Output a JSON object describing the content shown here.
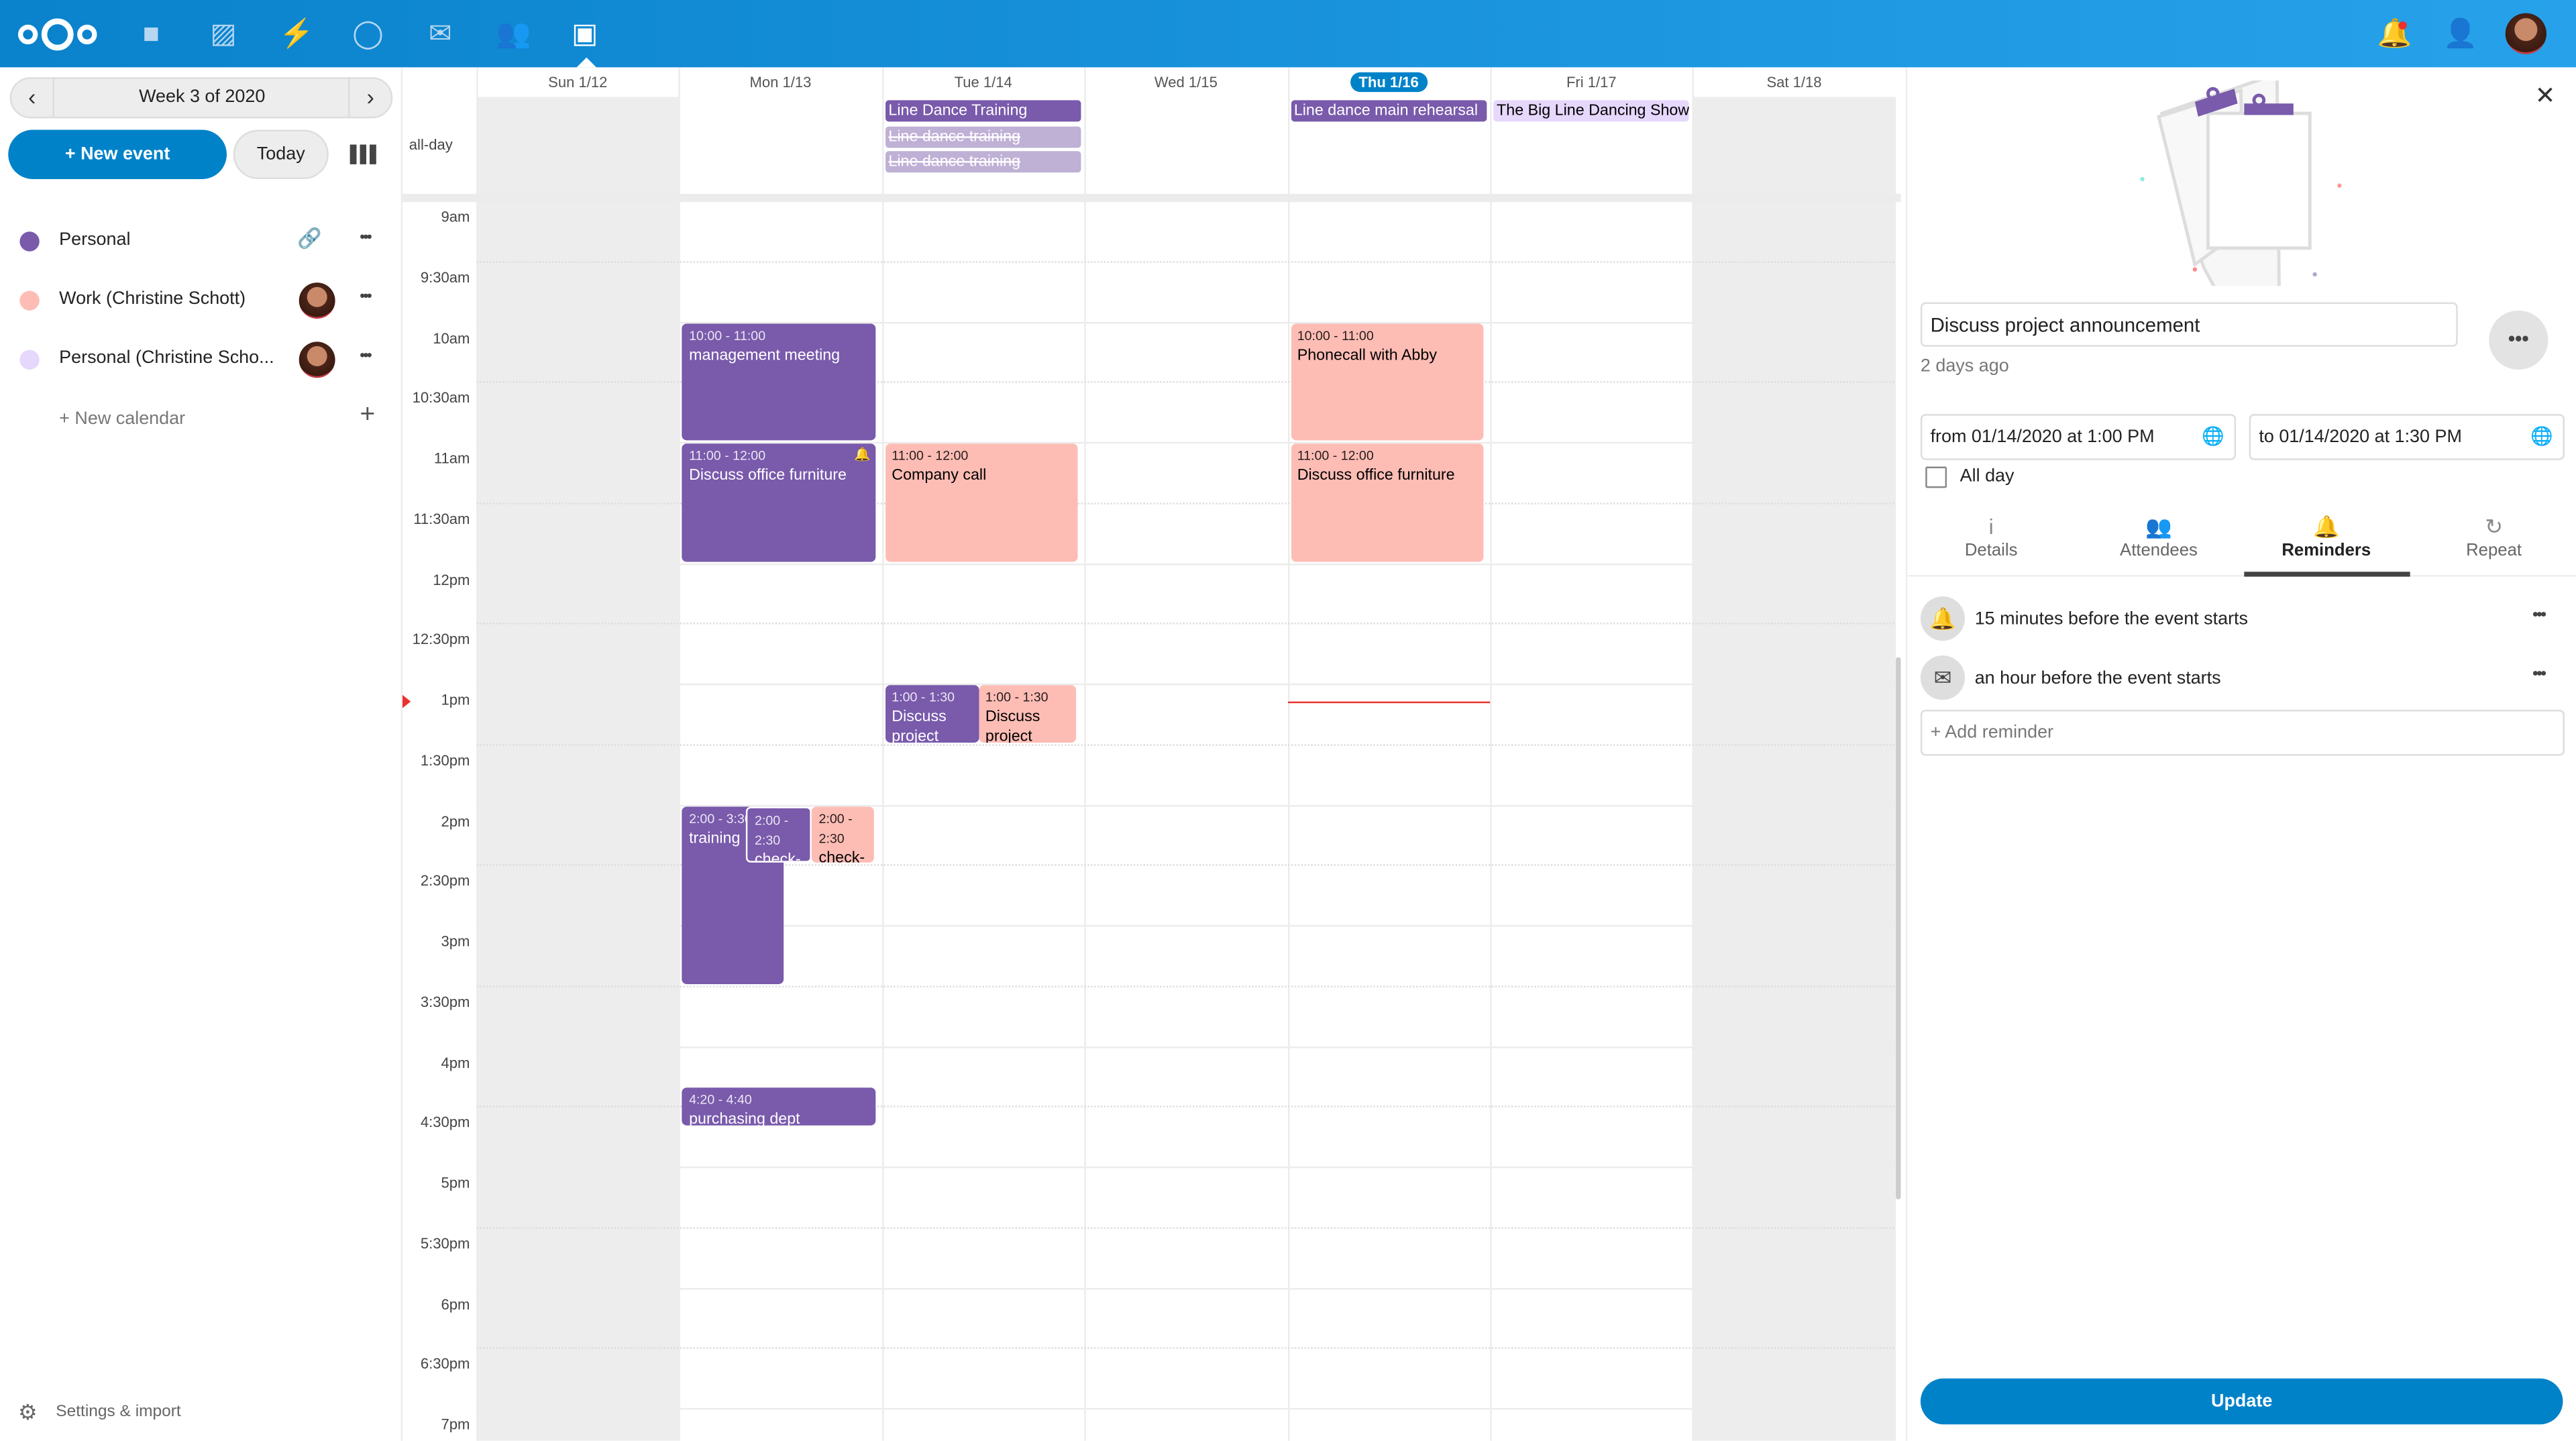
{
  "topbar": {
    "apps": [
      "logo-icon",
      "files-icon",
      "photos-icon",
      "activity-icon",
      "talk-icon",
      "mail-icon",
      "contacts-icon",
      "calendar-icon"
    ],
    "right": [
      "notifications-icon",
      "contacts-menu-icon",
      "user-avatar"
    ],
    "color": "#0082c9"
  },
  "sidebar": {
    "week_label": "Week 3 of 2020",
    "new_event": "+ New event",
    "today": "Today",
    "calendars": [
      {
        "name": "Personal",
        "color": "#795aab",
        "shared": false
      },
      {
        "name": "Work (Christine Schott)",
        "color": "#fdbdb5",
        "shared": true
      },
      {
        "name": "Personal (Christine Scho...",
        "color": "#e6d7fc",
        "shared": true
      }
    ],
    "new_calendar": "+ New calendar",
    "settings": "Settings & import"
  },
  "calendar": {
    "all_day_label": "all-day",
    "days": [
      "Sun 1/12",
      "Mon 1/13",
      "Tue 1/14",
      "Wed 1/15",
      "Thu 1/16",
      "Fri 1/17",
      "Sat 1/18"
    ],
    "today_index": 4,
    "hours": [
      "9am",
      "9:30am",
      "10am",
      "10:30am",
      "11am",
      "11:30am",
      "12pm",
      "12:30pm",
      "1pm",
      "1:30pm",
      "2pm",
      "2:30pm",
      "3pm",
      "3:30pm",
      "4pm",
      "4:30pm",
      "5pm",
      "5:30pm",
      "6pm",
      "6:30pm",
      "7pm"
    ],
    "now": "1:09pm",
    "all_day_events": [
      {
        "day": 2,
        "title": "Line Dance Training",
        "style": "purple"
      },
      {
        "day": 2,
        "title": "Line dance training",
        "style": "cancelled"
      },
      {
        "day": 2,
        "title": "Line dance training",
        "style": "cancelled"
      },
      {
        "day": 4,
        "title": "Line dance main rehearsal",
        "style": "purple"
      },
      {
        "day": 5,
        "title": "The Big Line Dancing Show",
        "style": "lilac"
      }
    ],
    "events": [
      {
        "day": 1,
        "start": 10,
        "end": 11,
        "time": "10:00 - 11:00",
        "title": "management meeting",
        "style": "purple"
      },
      {
        "day": 1,
        "start": 11,
        "end": 12,
        "time": "11:00 - 12:00",
        "title": "Discuss office furniture",
        "style": "purple",
        "bell": true
      },
      {
        "day": 2,
        "start": 11,
        "end": 12,
        "time": "11:00 - 12:00",
        "title": "Company call",
        "style": "pink"
      },
      {
        "day": 4,
        "start": 10,
        "end": 11,
        "time": "10:00 - 11:00",
        "title": "Phonecall with Abby",
        "style": "pink"
      },
      {
        "day": 4,
        "start": 11,
        "end": 12,
        "time": "11:00 - 12:00",
        "title": "Discuss office furniture",
        "style": "pink"
      },
      {
        "day": 2,
        "start": 13,
        "end": 13.5,
        "time": "1:00 - 1:30",
        "title": "Discuss project announcement",
        "style": "purple"
      },
      {
        "day": 2,
        "start": 13,
        "end": 13.5,
        "time": "1:00 - 1:30",
        "title": "Discuss project",
        "style": "pink"
      },
      {
        "day": 1,
        "start": 14,
        "end": 15.5,
        "time": "2:00 - 3:30",
        "title": "training",
        "style": "purple"
      },
      {
        "day": 1,
        "start": 14,
        "end": 14.5,
        "time": "2:00 - 2:30",
        "title": "check-in",
        "style": "purple"
      },
      {
        "day": 1,
        "start": 14,
        "end": 14.5,
        "time": "2:00 - 2:30",
        "title": "check-in",
        "style": "pink"
      },
      {
        "day": 1,
        "start": 16.333,
        "end": 16.667,
        "time": "4:20 - 4:40",
        "title": "purchasing dept",
        "style": "purple"
      }
    ],
    "colors": {
      "purple": "#795aab",
      "pink": "#fdbdb5",
      "cancelled": "#bfb0d5",
      "lilac": "#e6d7fc"
    }
  },
  "panel": {
    "title": "Discuss project announcement",
    "modified": "2 days ago",
    "from": "from 01/14/2020 at 1:00 PM",
    "to": "to 01/14/2020 at 1:30 PM",
    "all_day": "All day",
    "all_day_checked": false,
    "tabs": [
      {
        "label": "Details",
        "icon": "info-icon"
      },
      {
        "label": "Attendees",
        "icon": "attendees-icon"
      },
      {
        "label": "Reminders",
        "icon": "bell-icon",
        "active": true
      },
      {
        "label": "Repeat",
        "icon": "repeat-icon"
      }
    ],
    "reminders": [
      {
        "text": "15 minutes before the event starts",
        "icon": "bell-icon"
      },
      {
        "text": "an hour before the event starts",
        "icon": "mail-icon"
      }
    ],
    "add_reminder": "+ Add reminder",
    "update": "Update"
  }
}
